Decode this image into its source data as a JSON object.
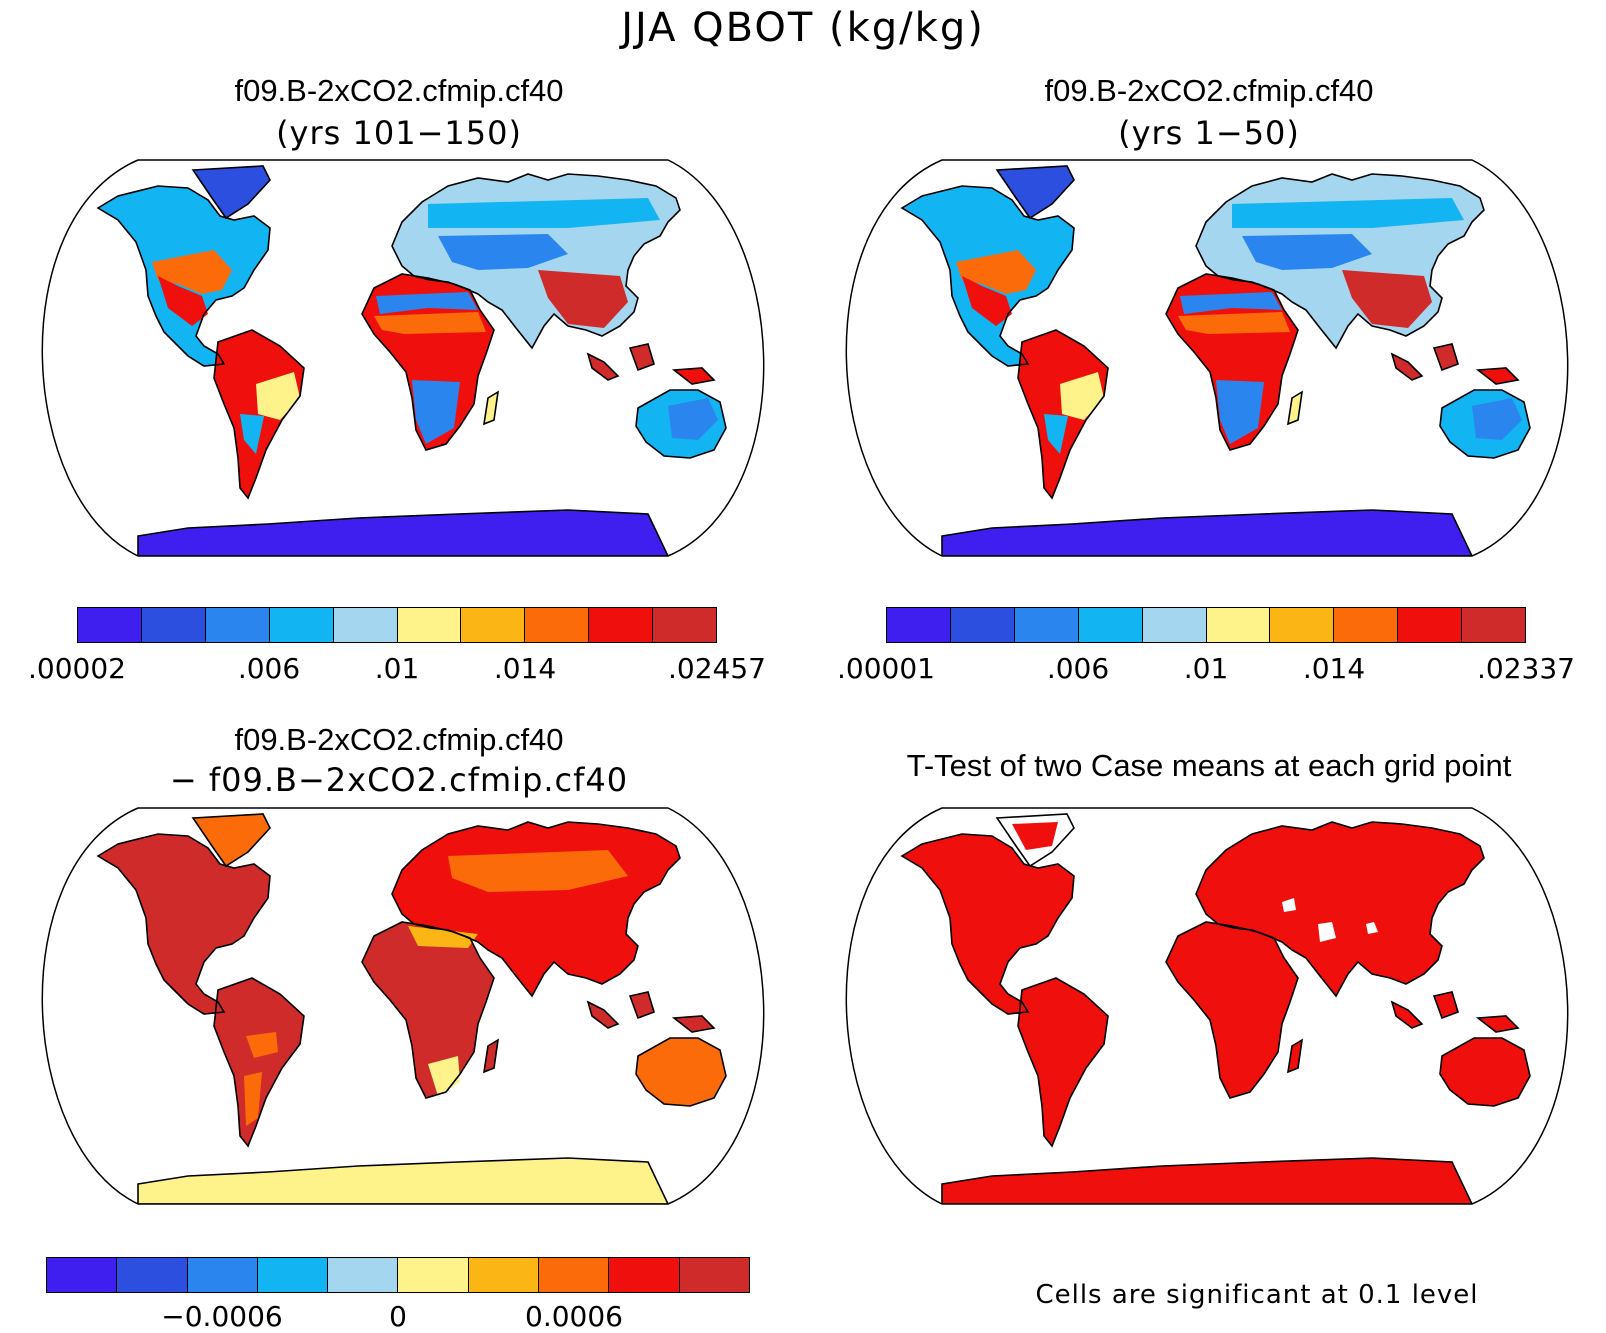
{
  "main_title": "JJA QBOT (kg/kg)",
  "colors": [
    "#3e1ff0",
    "#2d4fe0",
    "#2a86ee",
    "#12b4f2",
    "#a4d6ef",
    "#fdf38a",
    "#fbb515",
    "#fb6b0a",
    "#ef0f0c",
    "#d02b2b"
  ],
  "panels": [
    {
      "id": "top-left",
      "title": "f09.B-2xCO2.cfmip.cf40",
      "subtitle": "(yrs 101−150)",
      "colorbar_labels": [
        ".00002",
        ".006",
        ".01",
        ".014",
        ".02457"
      ],
      "colorbar_ticks": [
        0,
        3,
        5,
        7,
        10
      ],
      "scheme": "abs"
    },
    {
      "id": "top-right",
      "title": "f09.B-2xCO2.cfmip.cf40",
      "subtitle": "(yrs 1−50)",
      "colorbar_labels": [
        ".00001",
        ".006",
        ".01",
        ".014",
        ".02337"
      ],
      "colorbar_ticks": [
        0,
        3,
        5,
        7,
        10
      ],
      "scheme": "abs"
    },
    {
      "id": "bottom-left",
      "title": "f09.B-2xCO2.cfmip.cf40",
      "subtitle": "− f09.B−2xCO2.cfmip.cf40",
      "colorbar_labels": [
        "−0.0006",
        "0",
        "0.0006"
      ],
      "colorbar_ticks": [
        2.5,
        5,
        7.5
      ],
      "scheme": "diff"
    },
    {
      "id": "bottom-right",
      "title": "T-Test of two Case means at each grid point",
      "note": "Cells are significant at 0.1 level",
      "scheme": "ttest"
    }
  ]
}
